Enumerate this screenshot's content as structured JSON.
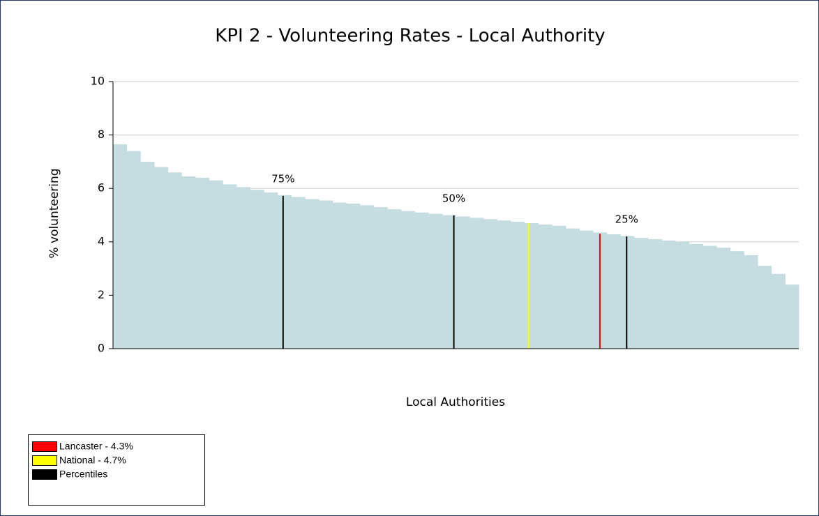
{
  "chart_data": {
    "type": "bar",
    "title": "KPI 2 - Volunteering Rates - Local Authority",
    "xlabel": "Local Authorities",
    "ylabel": "% volunteering",
    "color": "#c5dde0",
    "values": [
      7.65,
      7.4,
      7.0,
      6.8,
      6.6,
      6.45,
      6.4,
      6.3,
      6.15,
      6.05,
      5.95,
      5.85,
      5.75,
      5.68,
      5.6,
      5.55,
      5.47,
      5.43,
      5.37,
      5.3,
      5.22,
      5.15,
      5.1,
      5.05,
      5.0,
      4.95,
      4.9,
      4.85,
      4.8,
      4.75,
      4.7,
      4.65,
      4.6,
      4.5,
      4.42,
      4.35,
      4.28,
      4.22,
      4.15,
      4.1,
      4.05,
      4.0,
      3.92,
      3.85,
      3.78,
      3.65,
      3.5,
      3.1,
      2.8,
      2.4
    ],
    "ylim": [
      0,
      10
    ],
    "yticks": [
      0,
      2,
      4,
      6,
      8,
      10
    ],
    "grid": true,
    "reference_lines": [
      {
        "label": "75%",
        "value": 5.72,
        "x": 12.4,
        "color": "#000000"
      },
      {
        "label": "50%",
        "value": 4.99,
        "x": 24.85,
        "color": "#000000"
      },
      {
        "value": 4.7,
        "x": 30.3,
        "color": "#ffff00"
      },
      {
        "value": 4.3,
        "x": 35.5,
        "color": "#ff0000"
      },
      {
        "label": "25%",
        "value": 4.2,
        "x": 37.45,
        "color": "#000000"
      }
    ],
    "legend": [
      {
        "label": "Lancaster - 4.3%",
        "color": "#ff0000"
      },
      {
        "label": "National - 4.7%",
        "color": "#ffff00"
      },
      {
        "label": "Percentiles",
        "color": "#000000"
      }
    ]
  }
}
